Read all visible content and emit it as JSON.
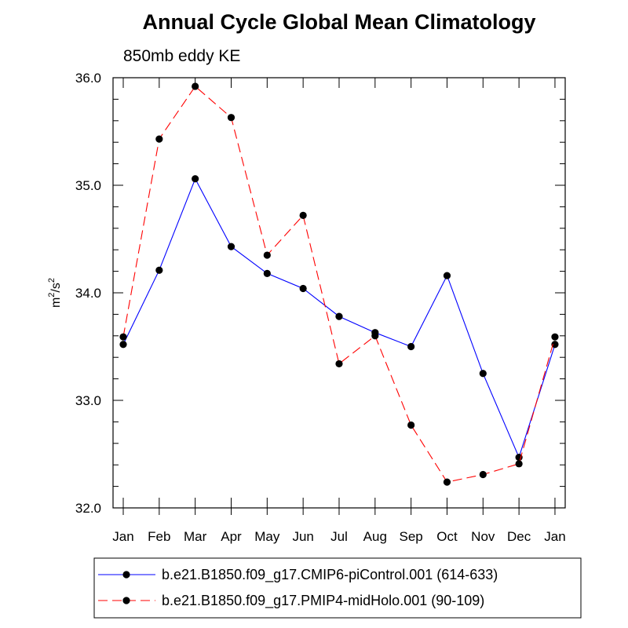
{
  "chart_data": {
    "type": "line",
    "title": "Annual Cycle Global Mean Climatology",
    "subtitle": "850mb eddy KE",
    "xlabel": "",
    "ylabel": "m²/s²",
    "ylabel_base1": "m",
    "ylabel_sup1": "2",
    "ylabel_mid": "/s",
    "ylabel_sup2": "2",
    "categories": [
      "Jan",
      "Feb",
      "Mar",
      "Apr",
      "May",
      "Jun",
      "Jul",
      "Aug",
      "Sep",
      "Oct",
      "Nov",
      "Dec",
      "Jan"
    ],
    "ylim": [
      32.0,
      36.0
    ],
    "yticks": [
      "32.0",
      "33.0",
      "34.0",
      "35.0",
      "36.0"
    ],
    "grid": false,
    "legend_position": "bottom",
    "series": [
      {
        "name": "b.e21.B1850.f09_g17.CMIP6-piControl.001 (614-633)",
        "color": "#0000ff",
        "line_style": "solid",
        "values": [
          33.52,
          34.21,
          35.06,
          34.43,
          34.18,
          34.04,
          33.78,
          33.63,
          33.5,
          34.16,
          33.25,
          32.47,
          33.52
        ]
      },
      {
        "name": "b.e21.B1850.f09_g17.PMIP4-midHolo.001 (90-109)",
        "color": "#ff0000",
        "line_style": "dashed",
        "values": [
          33.59,
          35.43,
          35.92,
          35.63,
          34.35,
          34.72,
          33.34,
          33.6,
          32.77,
          32.24,
          32.31,
          32.41,
          33.59
        ]
      }
    ]
  }
}
